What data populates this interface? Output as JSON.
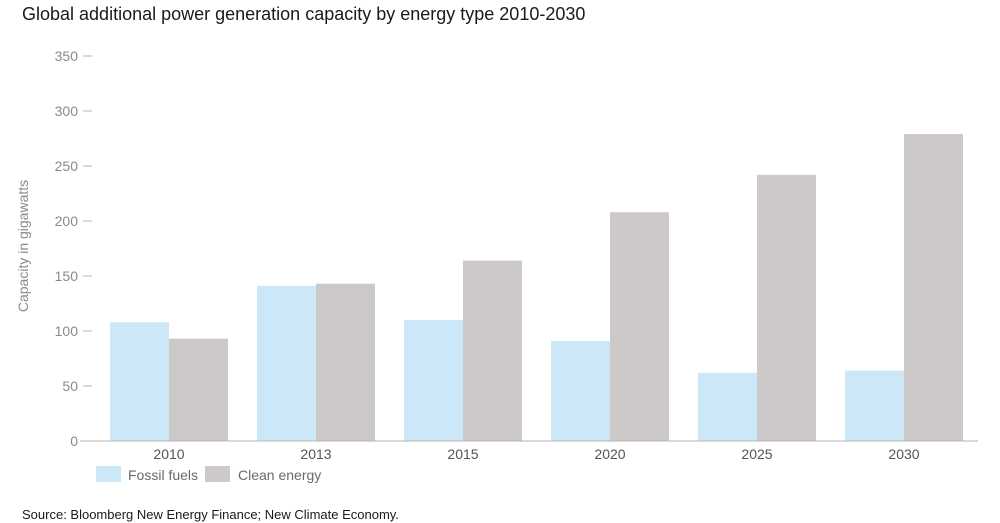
{
  "chart_data": {
    "type": "bar",
    "title": "Global additional power generation capacity by energy type 2010-2030",
    "ylabel": "Capacity in gigawatts",
    "xlabel": "",
    "ylim": [
      0,
      350
    ],
    "yticks": [
      0,
      50,
      100,
      150,
      200,
      250,
      300,
      350
    ],
    "categories": [
      "2010",
      "2013",
      "2015",
      "2020",
      "2025",
      "2030"
    ],
    "series": [
      {
        "name": "Fossil fuels",
        "color": "#cce8f8",
        "values": [
          108,
          141,
          110,
          91,
          62,
          64
        ]
      },
      {
        "name": "Clean energy",
        "color": "#cdc9c8",
        "values": [
          93,
          143,
          164,
          208,
          242,
          279
        ]
      }
    ],
    "grid": false,
    "legend": "bottom-left",
    "source": "Source: Bloomberg New Energy Finance; New Climate Economy."
  }
}
